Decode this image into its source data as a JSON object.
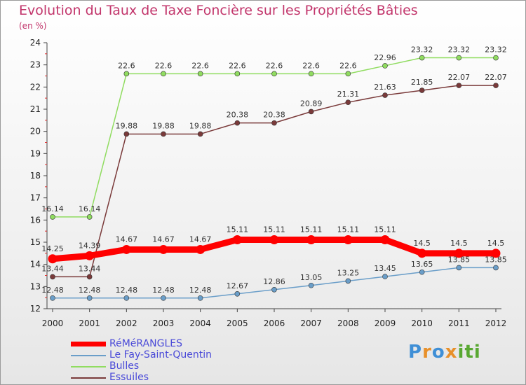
{
  "title": "Evolution du Taux de Taxe Foncière sur les Propriétés Bâties",
  "unit_label": "(en %)",
  "logo": {
    "letters": [
      "P",
      "r",
      "o",
      "x",
      "i",
      "t",
      "i"
    ],
    "colors": [
      "#3f8fd6",
      "#e8902a",
      "#3f8fd6",
      "#e8902a",
      "#59a832",
      "#59a832",
      "#59a832"
    ]
  },
  "chart_data": {
    "type": "line",
    "x": [
      "2000",
      "2001",
      "2002",
      "2003",
      "2004",
      "2005",
      "2006",
      "2007",
      "2008",
      "2009",
      "2010",
      "2011",
      "2012"
    ],
    "ylim": [
      12,
      24
    ],
    "yticks": [
      "12",
      "13",
      "14",
      "15",
      "16",
      "17",
      "18",
      "19",
      "20",
      "21",
      "22",
      "23",
      "24"
    ],
    "grid": false,
    "legend_position": "bottom-left",
    "series": [
      {
        "name": "RéMéRANGLES",
        "color": "#ff0000",
        "values": [
          14.25,
          14.39,
          14.67,
          14.67,
          14.67,
          15.11,
          15.11,
          15.11,
          15.11,
          15.11,
          14.5,
          14.5,
          14.5
        ],
        "labels": [
          "14.25",
          "14.39",
          "14.67",
          "14.67",
          "14.67",
          "15.11",
          "15.11",
          "15.11",
          "15.11",
          "15.11",
          "14.5",
          "14.5",
          "14.5"
        ]
      },
      {
        "name": "Le Fay-Saint-Quentin",
        "color": "#6a9ec9",
        "values": [
          12.48,
          12.48,
          12.48,
          12.48,
          12.48,
          12.67,
          12.86,
          13.05,
          13.25,
          13.45,
          13.65,
          13.85,
          13.85
        ],
        "labels": [
          "12.48",
          "12.48",
          "12.48",
          "12.48",
          "12.48",
          "12.67",
          "12.86",
          "13.05",
          "13.25",
          "13.45",
          "13.65",
          "13.85",
          "13.85"
        ]
      },
      {
        "name": "Bulles",
        "color": "#90dc60",
        "values": [
          16.14,
          16.14,
          22.6,
          22.6,
          22.6,
          22.6,
          22.6,
          22.6,
          22.6,
          22.96,
          23.32,
          23.32,
          23.32
        ],
        "labels": [
          "16.14",
          "16.14",
          "22.6",
          "22.6",
          "22.6",
          "22.6",
          "22.6",
          "22.6",
          "22.6",
          "22.96",
          "23.32",
          "23.32",
          "23.32"
        ]
      },
      {
        "name": "Essuiles",
        "color": "#7a3a3a",
        "values": [
          13.44,
          13.44,
          19.88,
          19.88,
          19.88,
          20.38,
          20.38,
          20.89,
          21.31,
          21.63,
          21.85,
          22.07,
          22.07
        ],
        "labels": [
          "13.44",
          "13.44",
          "19.88",
          "19.88",
          "19.88",
          "20.38",
          "20.38",
          "20.89",
          "21.31",
          "21.63",
          "21.85",
          "22.07",
          "22.07"
        ]
      }
    ]
  }
}
